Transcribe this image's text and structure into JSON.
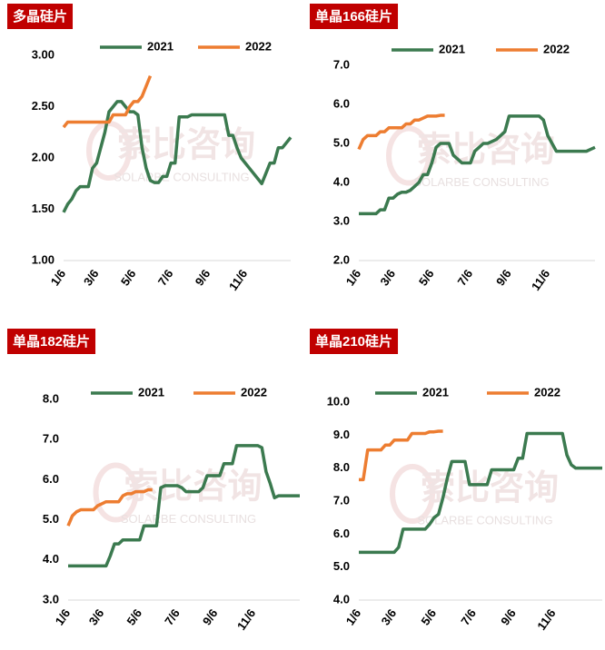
{
  "chart_data": [
    {
      "type": "line",
      "title": "多晶硅片",
      "watermark": [
        "索比咨询",
        "SOLARBE CONSULTING"
      ],
      "categories": [
        "1/6",
        null,
        null,
        null,
        null,
        null,
        null,
        null,
        "3/6",
        null,
        null,
        null,
        null,
        null,
        null,
        null,
        null,
        "5/6",
        null,
        null,
        null,
        null,
        null,
        null,
        null,
        null,
        "7/6",
        null,
        null,
        null,
        null,
        null,
        null,
        null,
        null,
        "9/6",
        null,
        null,
        null,
        null,
        null,
        null,
        null,
        null,
        "11/6",
        null,
        null,
        null,
        null,
        null,
        null,
        null,
        null,
        null,
        null,
        null
      ],
      "ylim": [
        1,
        3
      ],
      "yticks": [
        {
          "value": 1,
          "label": "1.00"
        },
        {
          "value": 1.5,
          "label": "1.50"
        },
        {
          "value": 2,
          "label": "2.00"
        },
        {
          "value": 2.5,
          "label": "2.50"
        },
        {
          "value": 3,
          "label": "3.00"
        }
      ],
      "series": [
        {
          "name": "2021",
          "color": "#3b7a4f",
          "values": [
            1.47,
            1.55,
            1.6,
            1.68,
            1.72,
            1.72,
            1.72,
            1.9,
            1.95,
            2.1,
            2.25,
            2.45,
            2.5,
            2.55,
            2.55,
            2.5,
            2.45,
            2.45,
            2.42,
            2.1,
            1.9,
            1.78,
            1.76,
            1.76,
            1.82,
            1.82,
            1.95,
            1.95,
            2.4,
            2.4,
            2.4,
            2.42,
            2.42,
            2.42,
            2.42,
            2.42,
            2.42,
            2.42,
            2.42,
            2.42,
            2.22,
            2.22,
            2.1,
            2.0,
            1.95,
            1.9,
            1.85,
            1.8,
            1.75,
            1.85,
            1.95,
            1.95,
            2.1,
            2.1,
            2.15,
            2.2
          ]
        },
        {
          "name": "2022",
          "color": "#ed7d31",
          "values": [
            2.3,
            2.35,
            2.35,
            2.35,
            2.35,
            2.35,
            2.35,
            2.35,
            2.35,
            2.35,
            2.35,
            2.35,
            2.42,
            2.42,
            2.42,
            2.42,
            2.5,
            2.55,
            2.55,
            2.6,
            2.7,
            2.8,
            null,
            null,
            null,
            null,
            null,
            null,
            null,
            null,
            null,
            null,
            null,
            null,
            null,
            null,
            null,
            null,
            null,
            null,
            null,
            null,
            null,
            null,
            null,
            null,
            null,
            null,
            null,
            null,
            null,
            null,
            null,
            null,
            null,
            null
          ]
        }
      ]
    },
    {
      "type": "line",
      "title": "单晶166硅片",
      "watermark": [
        "索比咨询",
        "SOLARBE CONSULTING"
      ],
      "categories": [
        "1/6",
        null,
        null,
        null,
        null,
        null,
        null,
        null,
        "3/6",
        null,
        null,
        null,
        null,
        null,
        null,
        null,
        null,
        "5/6",
        null,
        null,
        null,
        null,
        null,
        null,
        null,
        null,
        "7/6",
        null,
        null,
        null,
        null,
        null,
        null,
        null,
        null,
        "9/6",
        null,
        null,
        null,
        null,
        null,
        null,
        null,
        null,
        "11/6",
        null,
        null,
        null,
        null,
        null,
        null,
        null,
        null,
        null,
        null,
        null
      ],
      "ylim": [
        2,
        7
      ],
      "yticks": [
        {
          "value": 2,
          "label": "2.0"
        },
        {
          "value": 3,
          "label": "3.0"
        },
        {
          "value": 4,
          "label": "4.0"
        },
        {
          "value": 5,
          "label": "5.0"
        },
        {
          "value": 6,
          "label": "6.0"
        },
        {
          "value": 7,
          "label": "7.0"
        }
      ],
      "series": [
        {
          "name": "2021",
          "color": "#3b7a4f",
          "values": [
            3.2,
            3.2,
            3.2,
            3.2,
            3.2,
            3.3,
            3.3,
            3.6,
            3.6,
            3.7,
            3.75,
            3.75,
            3.8,
            3.9,
            4.0,
            4.2,
            4.2,
            4.5,
            4.9,
            5.0,
            5.0,
            5.0,
            4.7,
            4.6,
            4.5,
            4.5,
            4.5,
            4.8,
            4.9,
            5.0,
            5.0,
            5.05,
            5.1,
            5.2,
            5.3,
            5.7,
            5.7,
            5.7,
            5.7,
            5.7,
            5.7,
            5.7,
            5.7,
            5.6,
            5.2,
            5.0,
            4.8,
            4.8,
            4.8,
            4.8,
            4.8,
            4.8,
            4.8,
            4.8,
            4.85,
            4.9
          ]
        },
        {
          "name": "2022",
          "color": "#ed7d31",
          "values": [
            4.85,
            5.1,
            5.2,
            5.2,
            5.2,
            5.3,
            5.3,
            5.4,
            5.4,
            5.4,
            5.4,
            5.5,
            5.5,
            5.6,
            5.6,
            5.65,
            5.7,
            5.7,
            5.7,
            5.72,
            5.72,
            null,
            null,
            null,
            null,
            null,
            null,
            null,
            null,
            null,
            null,
            null,
            null,
            null,
            null,
            null,
            null,
            null,
            null,
            null,
            null,
            null,
            null,
            null,
            null,
            null,
            null,
            null,
            null,
            null,
            null,
            null,
            null,
            null,
            null,
            null
          ]
        }
      ]
    },
    {
      "type": "line",
      "title": "单晶182硅片",
      "watermark": [
        "索比咨询",
        "SOLARBE CONSULTING"
      ],
      "categories": [
        "1/6",
        null,
        null,
        null,
        null,
        null,
        null,
        null,
        "3/6",
        null,
        null,
        null,
        null,
        null,
        null,
        null,
        null,
        "5/6",
        null,
        null,
        null,
        null,
        null,
        null,
        null,
        null,
        "7/6",
        null,
        null,
        null,
        null,
        null,
        null,
        null,
        null,
        "9/6",
        null,
        null,
        null,
        null,
        null,
        null,
        null,
        null,
        "11/6",
        null,
        null,
        null,
        null,
        null,
        null,
        null,
        null,
        null,
        null,
        null
      ],
      "ylim": [
        3,
        8
      ],
      "yticks": [
        {
          "value": 3,
          "label": "3.0"
        },
        {
          "value": 4,
          "label": "4.0"
        },
        {
          "value": 5,
          "label": "5.0"
        },
        {
          "value": 6,
          "label": "6.0"
        },
        {
          "value": 7,
          "label": "7.0"
        },
        {
          "value": 8,
          "label": "8.0"
        }
      ],
      "series": [
        {
          "name": "2021",
          "color": "#3b7a4f",
          "values": [
            3.85,
            3.85,
            3.85,
            3.85,
            3.85,
            3.85,
            3.85,
            3.85,
            3.85,
            3.85,
            4.1,
            4.4,
            4.4,
            4.5,
            4.5,
            4.5,
            4.5,
            4.5,
            4.85,
            4.85,
            4.85,
            4.85,
            5.8,
            5.85,
            5.85,
            5.85,
            5.85,
            5.8,
            5.7,
            5.7,
            5.7,
            5.7,
            5.8,
            6.1,
            6.1,
            6.1,
            6.1,
            6.4,
            6.4,
            6.4,
            6.85,
            6.85,
            6.85,
            6.85,
            6.85,
            6.85,
            6.8,
            6.2,
            5.9,
            5.55,
            5.6,
            5.6,
            5.6,
            5.6,
            5.6,
            5.6
          ]
        },
        {
          "name": "2022",
          "color": "#ed7d31",
          "values": [
            4.85,
            5.1,
            5.2,
            5.25,
            5.25,
            5.25,
            5.25,
            5.35,
            5.4,
            5.45,
            5.45,
            5.45,
            5.45,
            5.6,
            5.65,
            5.65,
            5.7,
            5.7,
            5.7,
            5.75,
            5.75,
            null,
            null,
            null,
            null,
            null,
            null,
            null,
            null,
            null,
            null,
            null,
            null,
            null,
            null,
            null,
            null,
            null,
            null,
            null,
            null,
            null,
            null,
            null,
            null,
            null,
            null,
            null,
            null,
            null,
            null,
            null,
            null,
            null,
            null,
            null
          ]
        }
      ]
    },
    {
      "type": "line",
      "title": "单晶210硅片",
      "watermark": [
        "索比咨询",
        "SOLARBE CONSULTING"
      ],
      "categories": [
        "1/6",
        null,
        null,
        null,
        null,
        null,
        null,
        null,
        "3/6",
        null,
        null,
        null,
        null,
        null,
        null,
        null,
        null,
        "5/6",
        null,
        null,
        null,
        null,
        null,
        null,
        null,
        null,
        "7/6",
        null,
        null,
        null,
        null,
        null,
        null,
        null,
        null,
        "9/6",
        null,
        null,
        null,
        null,
        null,
        null,
        null,
        null,
        "11/6",
        null,
        null,
        null,
        null,
        null,
        null,
        null,
        null,
        null,
        null,
        null
      ],
      "ylim": [
        4,
        10
      ],
      "yticks": [
        {
          "value": 4,
          "label": "4.0"
        },
        {
          "value": 5,
          "label": "5.0"
        },
        {
          "value": 6,
          "label": "6.0"
        },
        {
          "value": 7,
          "label": "7.0"
        },
        {
          "value": 8,
          "label": "8.0"
        },
        {
          "value": 9,
          "label": "9.0"
        },
        {
          "value": 10,
          "label": "10.0"
        }
      ],
      "series": [
        {
          "name": "2021",
          "color": "#3b7a4f",
          "values": [
            5.45,
            5.45,
            5.45,
            5.45,
            5.45,
            5.45,
            5.45,
            5.45,
            5.45,
            5.6,
            6.15,
            6.15,
            6.15,
            6.15,
            6.15,
            6.15,
            6.3,
            6.5,
            6.6,
            7.1,
            7.7,
            8.2,
            8.2,
            8.2,
            8.2,
            7.5,
            7.5,
            7.5,
            7.5,
            7.5,
            7.95,
            7.95,
            7.95,
            7.95,
            7.95,
            7.95,
            8.3,
            8.3,
            9.05,
            9.05,
            9.05,
            9.05,
            9.05,
            9.05,
            9.05,
            9.05,
            9.05,
            8.4,
            8.1,
            8.0,
            8.0,
            8.0,
            8.0,
            8.0,
            8.0,
            8.0
          ]
        },
        {
          "name": "2022",
          "color": "#ed7d31",
          "values": [
            7.65,
            7.65,
            8.55,
            8.55,
            8.55,
            8.55,
            8.7,
            8.7,
            8.85,
            8.85,
            8.85,
            8.85,
            9.05,
            9.05,
            9.05,
            9.05,
            9.1,
            9.1,
            9.12,
            9.12,
            null,
            null,
            null,
            null,
            null,
            null,
            null,
            null,
            null,
            null,
            null,
            null,
            null,
            null,
            null,
            null,
            null,
            null,
            null,
            null,
            null,
            null,
            null,
            null,
            null,
            null,
            null,
            null,
            null,
            null,
            null,
            null,
            null,
            null,
            null,
            null
          ]
        }
      ]
    }
  ]
}
